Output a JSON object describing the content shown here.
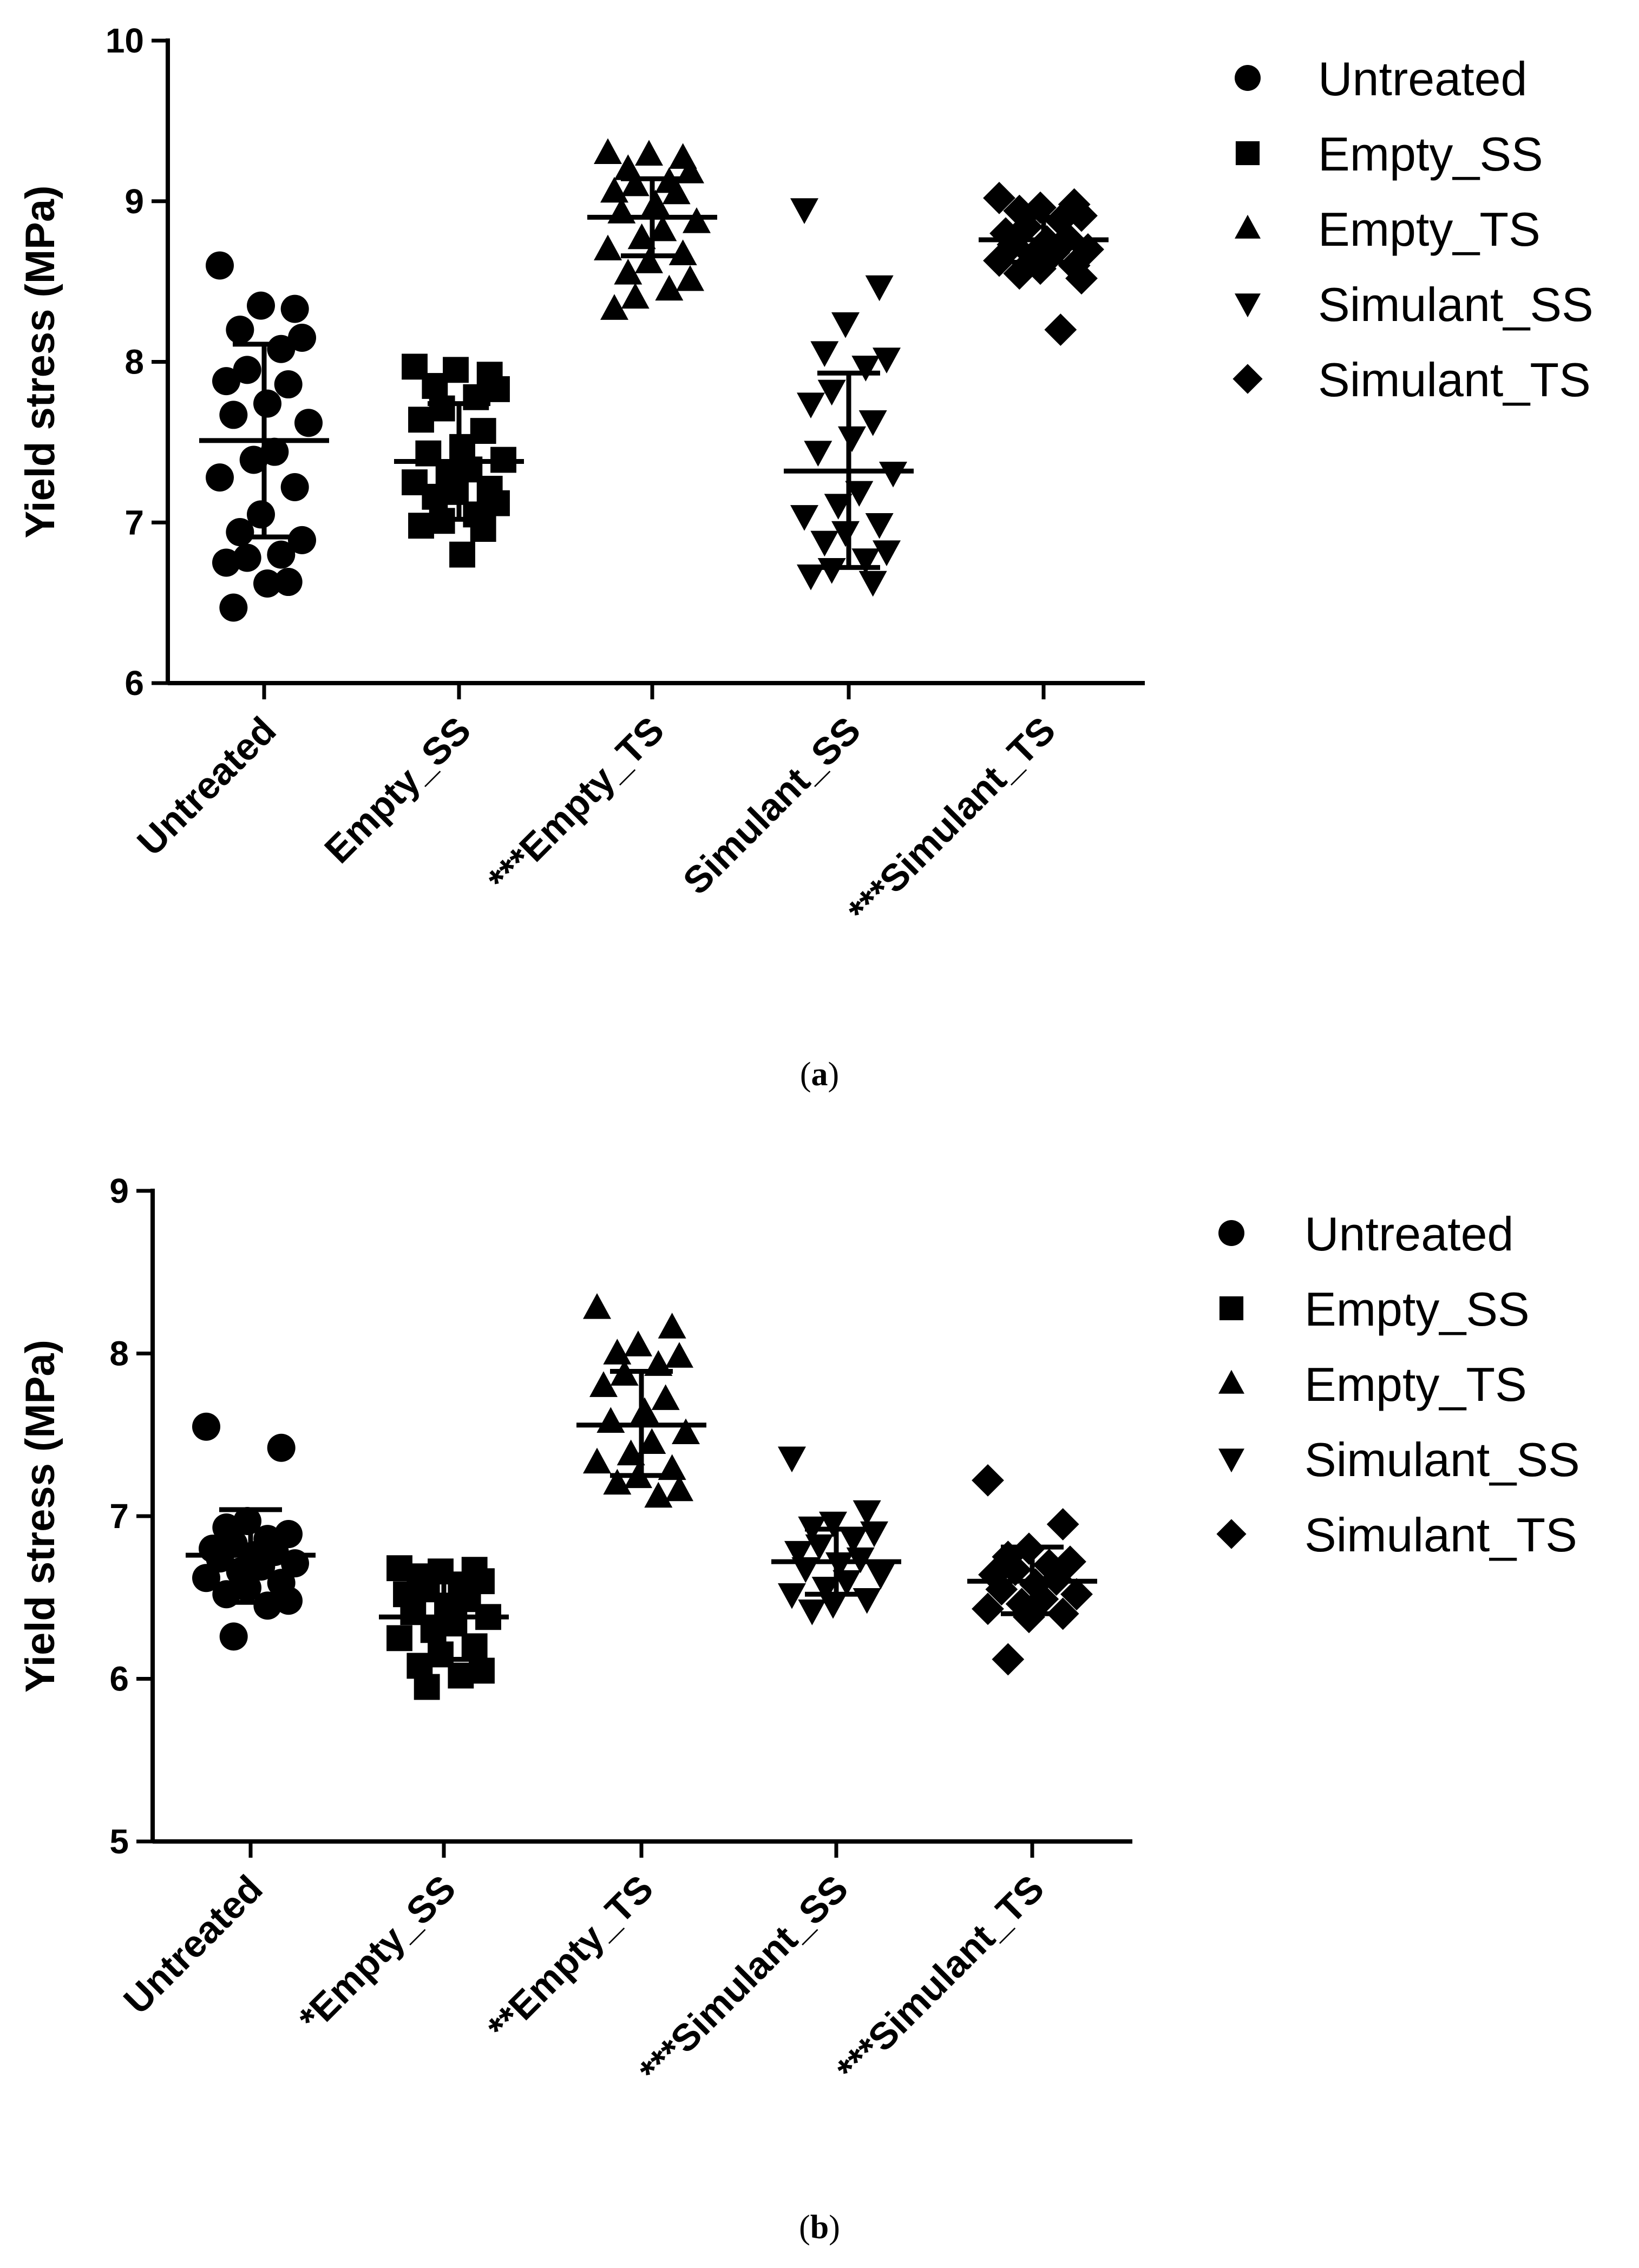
{
  "chart_data": [
    {
      "type": "scatter",
      "panel": "(a)",
      "caption_letter": "a",
      "title": "",
      "xlabel": "",
      "ylabel": "Yield stress (MPa)",
      "ylim": [
        6,
        10
      ],
      "yticks": [
        "6",
        "7",
        "8",
        "9",
        "10"
      ],
      "grid": false,
      "legend_position": "top-right",
      "categories": [
        "Untreated",
        "Empty_SS",
        "***Empty_TS",
        "Simulant_SS",
        "***Simulant_TS"
      ],
      "legend": [
        "Untreated",
        "Empty_SS",
        "Empty_TS",
        "Simulant_SS",
        "Simulant_TS"
      ],
      "marker_shapes": [
        "circle",
        "square",
        "triangle-up",
        "triangle-down",
        "diamond"
      ],
      "series": [
        {
          "name": "Untreated",
          "mean": 7.51,
          "sd_low": 6.91,
          "sd_high": 8.11,
          "values": [
            8.6,
            8.33,
            8.35,
            8.2,
            8.15,
            8.08,
            7.95,
            7.88,
            7.86,
            7.74,
            7.67,
            7.62,
            7.44,
            7.39,
            7.28,
            7.22,
            7.05,
            6.94,
            6.89,
            6.8,
            6.78,
            6.75,
            6.63,
            6.62,
            6.47
          ]
        },
        {
          "name": "Empty_SS",
          "mean": 7.38,
          "sd_low": 7.02,
          "sd_high": 7.74,
          "values": [
            7.97,
            7.92,
            7.95,
            7.85,
            7.83,
            7.78,
            7.71,
            7.64,
            7.57,
            7.47,
            7.43,
            7.39,
            7.33,
            7.3,
            7.25,
            7.21,
            7.19,
            7.16,
            7.12,
            7.05,
            7.01,
            6.98,
            6.96,
            6.8
          ]
        },
        {
          "name": "Empty_TS",
          "mean": 8.9,
          "sd_low": 8.66,
          "sd_high": 9.14,
          "values": [
            9.3,
            9.27,
            9.29,
            9.2,
            9.18,
            9.12,
            9.1,
            9.06,
            9.05,
            8.98,
            8.93,
            8.87,
            8.82,
            8.77,
            8.7,
            8.67,
            8.62,
            8.55,
            8.51,
            8.45,
            8.4,
            8.33
          ]
        },
        {
          "name": "Simulant_SS",
          "mean": 7.32,
          "sd_low": 6.72,
          "sd_high": 7.93,
          "values": [
            8.95,
            8.47,
            8.24,
            8.06,
            8.02,
            7.97,
            7.82,
            7.74,
            7.63,
            7.53,
            7.44,
            7.31,
            7.19,
            7.11,
            7.04,
            6.99,
            6.94,
            6.88,
            6.82,
            6.77,
            6.71,
            6.67,
            6.63
          ]
        },
        {
          "name": "Simulant_TS",
          "mean": 8.76,
          "sd_low": 8.62,
          "sd_high": 8.9,
          "values": [
            9.02,
            8.98,
            8.96,
            8.94,
            8.91,
            8.88,
            8.84,
            8.8,
            8.77,
            8.75,
            8.73,
            8.7,
            8.68,
            8.66,
            8.63,
            8.6,
            8.58,
            8.55,
            8.52,
            8.2
          ]
        }
      ]
    },
    {
      "type": "scatter",
      "panel": "(b)",
      "caption_letter": "b",
      "title": "",
      "xlabel": "",
      "ylabel": "Yield stress (MPa)",
      "ylim": [
        5,
        9
      ],
      "yticks": [
        "5",
        "6",
        "7",
        "8",
        "9"
      ],
      "grid": false,
      "legend_position": "top-right",
      "categories": [
        "Untreated",
        "*Empty_SS",
        "**Empty_TS",
        "***Simulant_SS",
        "***Simulant_TS"
      ],
      "legend": [
        "Untreated",
        "Empty_SS",
        "Empty_TS",
        "Simulant_SS",
        "Simulant_TS"
      ],
      "marker_shapes": [
        "circle",
        "square",
        "triangle-up",
        "triangle-down",
        "diamond"
      ],
      "series": [
        {
          "name": "Untreated",
          "mean": 6.76,
          "sd_low": 6.47,
          "sd_high": 7.04,
          "values": [
            7.55,
            7.42,
            6.97,
            6.93,
            6.89,
            6.86,
            6.83,
            6.8,
            6.78,
            6.76,
            6.74,
            6.71,
            6.69,
            6.66,
            6.62,
            6.59,
            6.56,
            6.52,
            6.48,
            6.45,
            6.26
          ]
        },
        {
          "name": "Empty_SS",
          "mean": 6.38,
          "sd_low": 6.12,
          "sd_high": 6.62,
          "values": [
            6.68,
            6.67,
            6.66,
            6.63,
            6.6,
            6.58,
            6.55,
            6.52,
            6.49,
            6.45,
            6.41,
            6.38,
            6.34,
            6.3,
            6.25,
            6.2,
            6.15,
            6.08,
            6.05,
            6.02,
            5.95
          ]
        },
        {
          "name": "Empty_TS",
          "mean": 7.56,
          "sd_low": 7.25,
          "sd_high": 7.89,
          "values": [
            8.28,
            8.16,
            8.05,
            8.0,
            7.98,
            7.93,
            7.87,
            7.8,
            7.72,
            7.64,
            7.58,
            7.51,
            7.45,
            7.38,
            7.33,
            7.29,
            7.24,
            7.2,
            7.16,
            7.12
          ]
        },
        {
          "name": "Simulant_SS",
          "mean": 6.72,
          "sd_low": 6.52,
          "sd_high": 6.92,
          "values": [
            7.36,
            7.03,
            6.96,
            6.93,
            6.9,
            6.86,
            6.82,
            6.78,
            6.74,
            6.71,
            6.68,
            6.64,
            6.6,
            6.56,
            6.52,
            6.49,
            6.46,
            6.42
          ]
        },
        {
          "name": "Simulant_TS",
          "mean": 6.6,
          "sd_low": 6.4,
          "sd_high": 6.81,
          "values": [
            7.22,
            6.95,
            6.8,
            6.75,
            6.72,
            6.7,
            6.67,
            6.64,
            6.61,
            6.58,
            6.55,
            6.52,
            6.49,
            6.46,
            6.43,
            6.4,
            6.38,
            6.12
          ]
        }
      ]
    }
  ]
}
